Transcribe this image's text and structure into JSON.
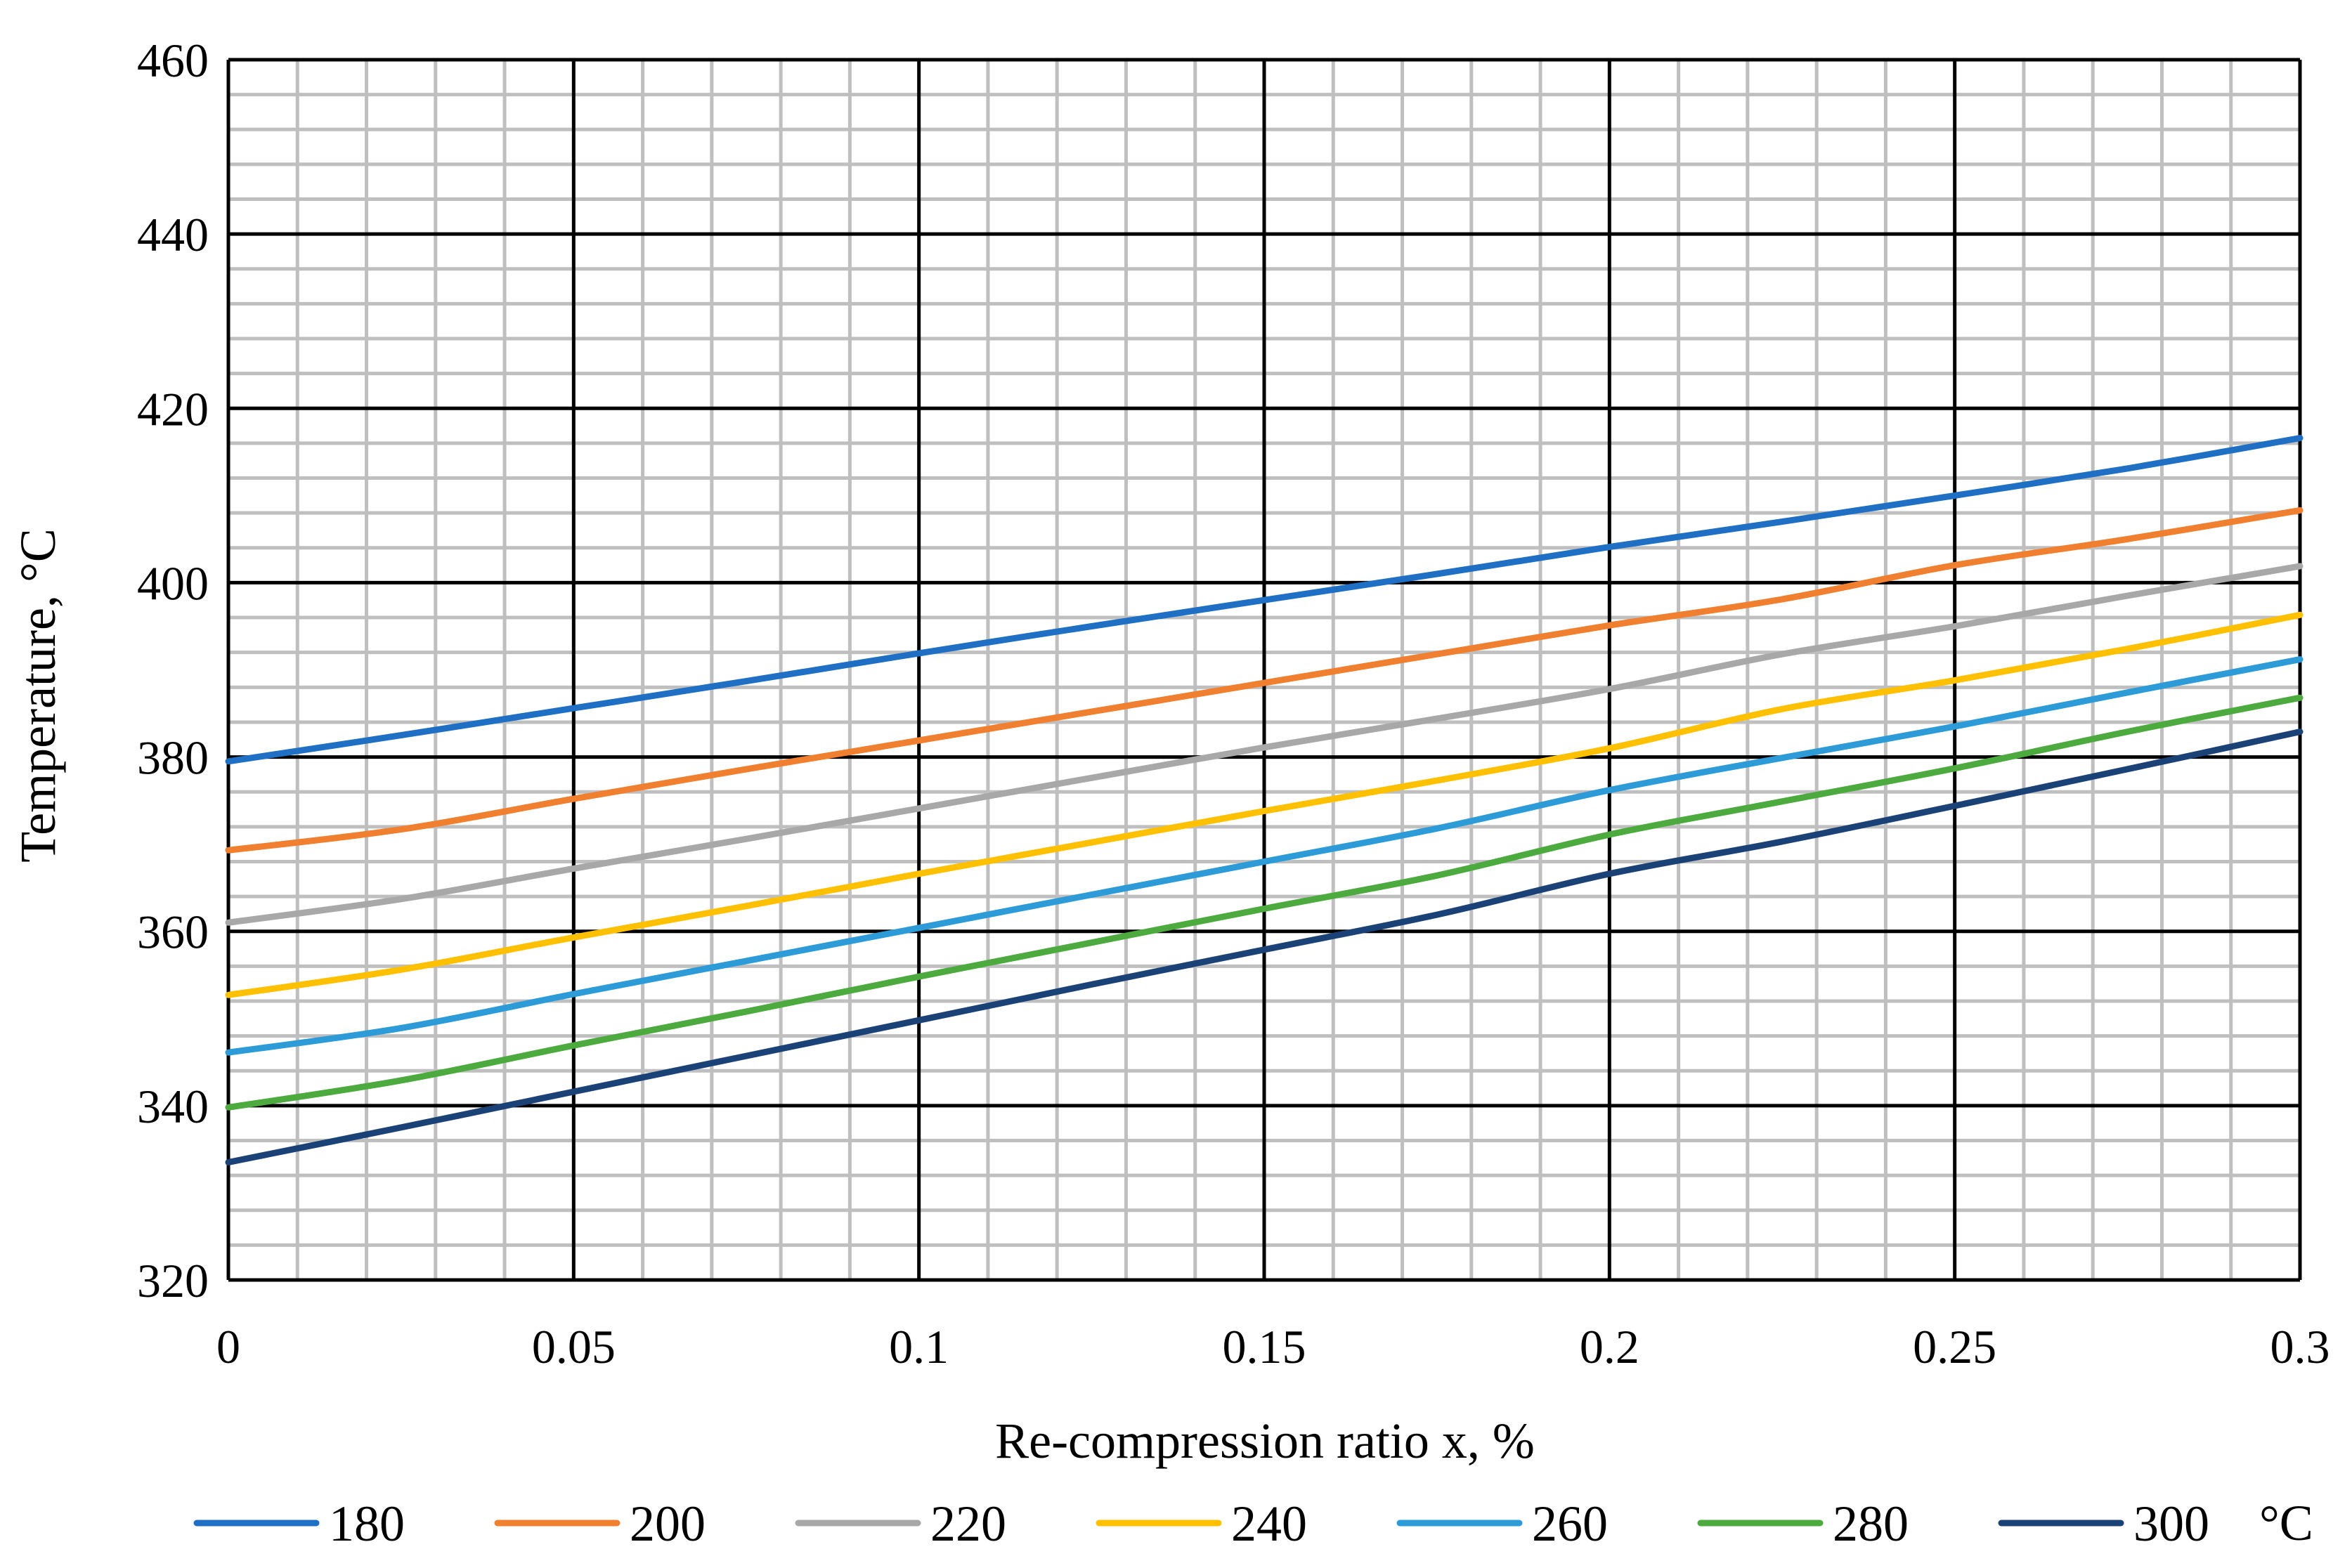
{
  "chart_data": {
    "type": "line",
    "title": "",
    "xlabel": "Re-compression ratio x, %",
    "ylabel": "Temperature, °C",
    "xlim": [
      0,
      0.3
    ],
    "ylim": [
      320,
      460
    ],
    "x_major_step": 0.05,
    "x_minor_step": 0.01,
    "y_major_step": 20,
    "y_minor_step": 4,
    "grid": true,
    "x_tick_labels": [
      "0",
      "0.05",
      "0.1",
      "0.15",
      "0.2",
      "0.25",
      "0.3"
    ],
    "y_tick_labels": [
      "320",
      "340",
      "360",
      "380",
      "400",
      "420",
      "440",
      "460"
    ],
    "legend_position": "bottom",
    "legend_unit": "°C",
    "x": [
      0,
      0.025,
      0.05,
      0.075,
      0.1,
      0.125,
      0.15,
      0.175,
      0.2,
      0.225,
      0.25,
      0.275,
      0.3
    ],
    "series": [
      {
        "name": "180",
        "color": "#1F6FC5",
        "values": [
          379.5,
          382.5,
          385.6,
          388.7,
          391.9,
          395.0,
          398.0,
          401.0,
          404.1,
          407.0,
          410.0,
          413.1,
          416.6
        ]
      },
      {
        "name": "200",
        "color": "#F07F30",
        "values": [
          369.3,
          371.7,
          375.2,
          378.6,
          381.9,
          385.2,
          388.5,
          391.8,
          395.1,
          398.1,
          402.0,
          405.0,
          408.3
        ]
      },
      {
        "name": "220",
        "color": "#A8A8A8",
        "values": [
          361.0,
          363.7,
          367.2,
          370.6,
          374.1,
          377.6,
          381.1,
          384.4,
          387.8,
          391.8,
          395.0,
          398.5,
          401.9
        ]
      },
      {
        "name": "240",
        "color": "#FFC000",
        "values": [
          352.7,
          355.6,
          359.3,
          362.9,
          366.6,
          370.2,
          373.8,
          377.3,
          381.0,
          385.5,
          388.8,
          392.4,
          396.3
        ]
      },
      {
        "name": "260",
        "color": "#2C9BD8",
        "values": [
          346.1,
          348.9,
          352.8,
          356.6,
          360.4,
          364.2,
          368.0,
          371.8,
          376.2,
          379.9,
          383.5,
          387.4,
          391.2
        ]
      },
      {
        "name": "280",
        "color": "#4CAA3F",
        "values": [
          339.8,
          342.9,
          346.9,
          350.8,
          354.8,
          358.7,
          362.6,
          366.4,
          371.1,
          374.9,
          378.7,
          382.9,
          386.8
        ]
      },
      {
        "name": "300",
        "color": "#1A4277",
        "values": [
          333.5,
          337.5,
          341.6,
          345.7,
          349.8,
          353.9,
          357.9,
          361.9,
          366.6,
          370.3,
          374.4,
          378.6,
          382.9
        ]
      }
    ]
  }
}
